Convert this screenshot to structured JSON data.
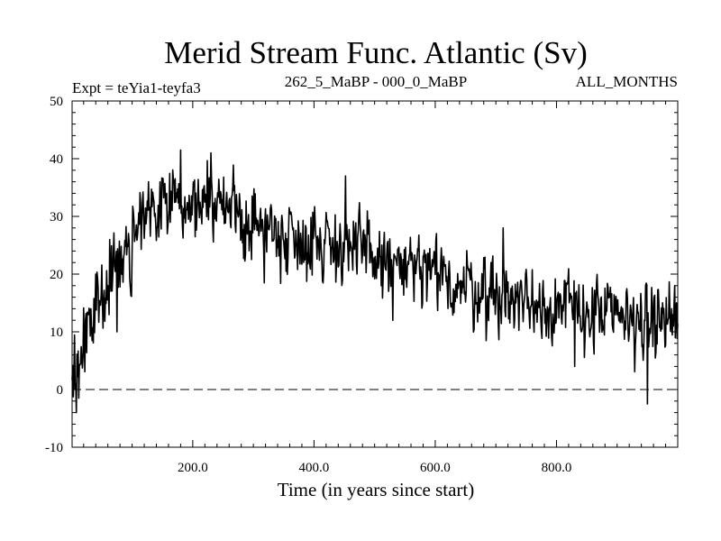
{
  "chart_data": {
    "type": "line",
    "title": "Merid Stream Func. Atlantic (Sv)",
    "subtitle_left": "Expt = teYia1-teyfa3",
    "subtitle_center": "262_5_MaBP - 000_0_MaBP",
    "subtitle_right": "ALL_MONTHS",
    "xlabel": "Time (in years since start)",
    "ylabel": "",
    "xlim": [
      1,
      1000
    ],
    "ylim": [
      -10,
      50
    ],
    "x_ticks": [
      200,
      400,
      600,
      800
    ],
    "x_tick_labels": [
      "200.0",
      "400.0",
      "600.0",
      "800.0"
    ],
    "y_ticks": [
      -10,
      0,
      10,
      20,
      30,
      40,
      50
    ],
    "y_tick_labels": [
      "-10",
      "0",
      "10",
      "20",
      "30",
      "40",
      "50"
    ],
    "reference_line": 0,
    "grid": false,
    "legend": "none",
    "series": [
      {
        "name": "Merid Stream Func. Atlantic",
        "x_start": 1,
        "x_step": 1,
        "trend_knots": [
          [
            1,
            1
          ],
          [
            10,
            2
          ],
          [
            20,
            6
          ],
          [
            30,
            10
          ],
          [
            40,
            14
          ],
          [
            60,
            19
          ],
          [
            80,
            22
          ],
          [
            100,
            25
          ],
          [
            120,
            29
          ],
          [
            140,
            32
          ],
          [
            160,
            34
          ],
          [
            180,
            34
          ],
          [
            200,
            33
          ],
          [
            220,
            33
          ],
          [
            240,
            32
          ],
          [
            260,
            31
          ],
          [
            280,
            30
          ],
          [
            300,
            28.5
          ],
          [
            350,
            27
          ],
          [
            400,
            26
          ],
          [
            450,
            25
          ],
          [
            500,
            23
          ],
          [
            550,
            21
          ],
          [
            600,
            19.5
          ],
          [
            650,
            18
          ],
          [
            700,
            16.5
          ],
          [
            750,
            15.5
          ],
          [
            800,
            14.5
          ],
          [
            850,
            13.5
          ],
          [
            900,
            12.5
          ],
          [
            950,
            12
          ],
          [
            1000,
            12
          ]
        ],
        "noise_amplitude": 3.2,
        "noise_seed": 4021,
        "spikes": [
          [
            8,
            -4
          ],
          [
            12,
            -1.5
          ],
          [
            75,
            10
          ],
          [
            180,
            41.5
          ],
          [
            230,
            41
          ],
          [
            452,
            37
          ],
          [
            530,
            12
          ],
          [
            628,
            15
          ],
          [
            712,
            28
          ],
          [
            830,
            4
          ],
          [
            950,
            -2.5
          ],
          [
            995,
            18
          ]
        ]
      }
    ]
  }
}
